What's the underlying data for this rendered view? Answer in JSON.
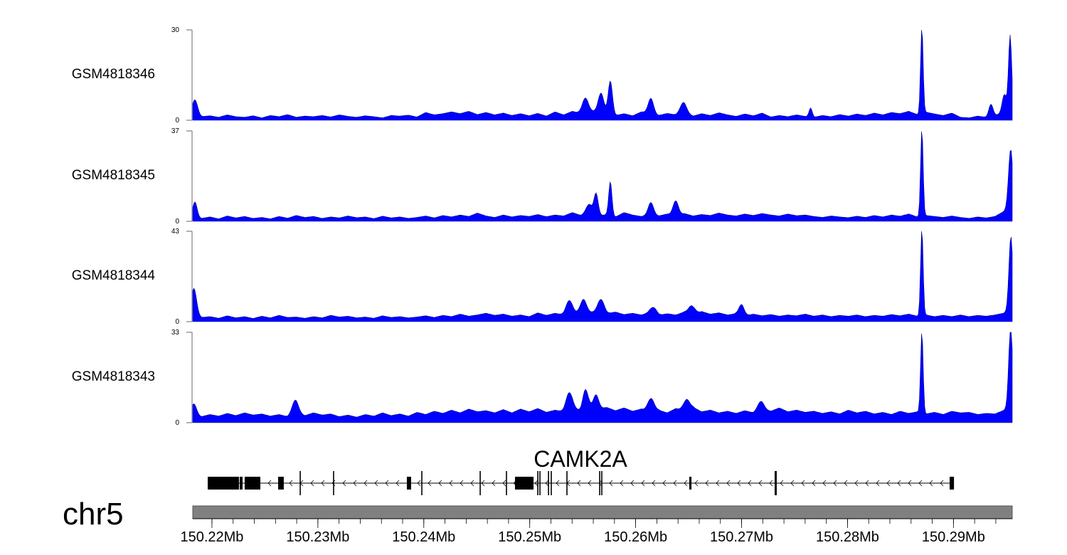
{
  "chart_data": {
    "type": "area",
    "chromosome": "chr5",
    "x_range_mb": [
      150.21819,
      150.29555
    ],
    "x_ticks_mb": [
      150.22,
      150.23,
      150.24,
      150.25,
      150.26,
      150.27,
      150.28,
      150.29
    ],
    "x_tick_labels": [
      "150.22Mb",
      "150.23Mb",
      "150.24Mb",
      "150.25Mb",
      "150.26Mb",
      "150.27Mb",
      "150.28Mb",
      "150.29Mb"
    ],
    "minor_tick_step_mb": 0.002,
    "fill_color": "#0000FF",
    "line_color": "#00008B",
    "tracks": [
      {
        "name": "GSM4818346",
        "ylim": [
          0,
          30
        ],
        "ytick_labels": [
          "30",
          "0"
        ],
        "baseline": [
          2,
          1.2,
          1.5,
          1,
          1.8,
          1.2,
          1,
          1.5,
          0.8,
          1.6,
          1.2,
          1.9,
          1,
          1.4,
          1.2,
          1.6,
          1.1,
          1.8,
          1.3,
          1,
          1.5,
          1.2,
          0.8,
          1.6,
          1.4,
          1.7,
          1.1,
          2.6,
          1.8,
          2.2,
          2.8,
          2.2,
          3,
          1.9,
          2.6,
          1.8,
          2.4,
          1.6,
          2.2,
          1.5,
          2.3,
          1.4,
          2.8,
          1.8,
          3,
          2.2,
          2.6,
          3.4,
          2.4,
          1.6,
          2.2,
          1.5,
          2.8,
          2.4,
          1.6,
          2.3,
          1.8,
          2.5,
          1.4,
          2.2,
          1.6,
          2.5,
          1.8,
          1.3,
          2.1,
          1.5,
          2.4,
          1.1,
          1.6,
          1.2,
          1.8,
          1.3,
          1,
          1.6,
          1.2,
          1.9,
          1.4,
          2.1,
          1.6,
          2.4,
          1.8,
          2.6,
          2.2,
          3,
          1.9,
          2.7,
          2.1,
          1.6,
          2.4,
          1,
          0.8,
          1.4,
          1,
          1.6,
          2.5,
          3.5
        ],
        "peaks": [
          [
            150.2184,
            5,
            0.25
          ],
          [
            150.25525,
            5,
            0.3
          ],
          [
            150.25674,
            6,
            0.25
          ],
          [
            150.25761,
            11,
            0.2
          ],
          [
            150.26144,
            5,
            0.25
          ],
          [
            150.2645,
            3.5,
            0.3
          ],
          [
            150.27652,
            3,
            0.15
          ],
          [
            150.28702,
            29,
            0.12
          ],
          [
            150.29354,
            4,
            0.2
          ],
          [
            150.29535,
            25,
            0.15
          ],
          [
            150.2948,
            6,
            0.2
          ]
        ]
      },
      {
        "name": "GSM4818345",
        "ylim": [
          0,
          37
        ],
        "ytick_labels": [
          "37",
          "0"
        ],
        "baseline": [
          2.2,
          1.2,
          1.8,
          1,
          2.2,
          1.4,
          2,
          1.2,
          1.6,
          1,
          2,
          1.3,
          2.4,
          1.6,
          2,
          1.2,
          1.8,
          1.4,
          2.2,
          1.5,
          1.8,
          1.1,
          2.1,
          1.4,
          1.8,
          1.2,
          1.6,
          2.2,
          1.4,
          2.4,
          1.8,
          2.6,
          2,
          3.4,
          2.2,
          1.6,
          2.6,
          1.8,
          2.4,
          2,
          2.8,
          1.9,
          2.6,
          2.2,
          3.6,
          2.4,
          3,
          2.1,
          2.8,
          1.8,
          3.6,
          2.6,
          2,
          2.8,
          2.2,
          3,
          2.4,
          3.2,
          2.2,
          2.8,
          2.4,
          3.4,
          2.6,
          2.2,
          3,
          2.4,
          3.2,
          2.6,
          2.2,
          3,
          2.3,
          2.6,
          2,
          1.6,
          2.2,
          1.8,
          1.5,
          2.1,
          1.6,
          2.4,
          1.8,
          2.6,
          2.1,
          3,
          1.8,
          2.4,
          2,
          1.6,
          2.2,
          1.6,
          1.2,
          1.8,
          1.4,
          2,
          4,
          6
        ],
        "peaks": [
          [
            150.2184,
            6,
            0.2
          ],
          [
            150.2556,
            4,
            0.3
          ],
          [
            150.25627,
            9,
            0.2
          ],
          [
            150.25761,
            14,
            0.15
          ],
          [
            150.26144,
            5,
            0.25
          ],
          [
            150.26378,
            6,
            0.25
          ],
          [
            150.28702,
            36,
            0.12
          ],
          [
            150.2954,
            24,
            0.2
          ]
        ]
      },
      {
        "name": "GSM4818344",
        "ylim": [
          0,
          43
        ],
        "ytick_labels": [
          "43",
          "0"
        ],
        "baseline": [
          3,
          2,
          2.4,
          1.6,
          2.8,
          1.8,
          2.4,
          1.5,
          2.6,
          1.8,
          3,
          2,
          2.2,
          1.6,
          2.4,
          1.8,
          3,
          2.2,
          2.6,
          1.8,
          2.2,
          1.6,
          2.8,
          2,
          2.4,
          1.8,
          2.2,
          2.8,
          2,
          3,
          2.4,
          3.6,
          2.6,
          3.2,
          4,
          3,
          3.6,
          2.6,
          3.2,
          2.4,
          4.2,
          3,
          4,
          3.2,
          4.6,
          3.4,
          4.2,
          5,
          3.8,
          4.6,
          3.4,
          4,
          3.2,
          4.4,
          3,
          3.8,
          3.2,
          4.6,
          3.4,
          4.8,
          3.6,
          4.2,
          3.2,
          3.8,
          2.8,
          3.6,
          2.8,
          3.4,
          2.6,
          3.2,
          2.8,
          3.6,
          2.6,
          3.2,
          2.4,
          3,
          2.6,
          3.2,
          2.4,
          3,
          2.6,
          3.4,
          2.8,
          3.6,
          2.6,
          3.2,
          2.4,
          3,
          2.4,
          3.2,
          2.4,
          3,
          2.6,
          3.2,
          4,
          6
        ],
        "peaks": [
          [
            150.2183,
            13,
            0.25
          ],
          [
            150.25371,
            6,
            0.3
          ],
          [
            150.25506,
            7,
            0.3
          ],
          [
            150.25674,
            6,
            0.3
          ],
          [
            150.2617,
            3,
            0.3
          ],
          [
            150.2653,
            4,
            0.3
          ],
          [
            150.27,
            5,
            0.25
          ],
          [
            150.28702,
            42,
            0.12
          ],
          [
            150.29542,
            35,
            0.18
          ]
        ]
      },
      {
        "name": "GSM4818343",
        "ylim": [
          0,
          33
        ],
        "ytick_labels": [
          "33",
          "0"
        ],
        "baseline": [
          3,
          2.2,
          3,
          2.4,
          3.4,
          2.6,
          3.6,
          2.8,
          3.2,
          2.4,
          3,
          2.2,
          3.4,
          2.6,
          3.6,
          2.8,
          3.2,
          2.2,
          2.8,
          2,
          3,
          2.4,
          3.6,
          2.6,
          3.2,
          2.4,
          3.8,
          3,
          4.2,
          3.4,
          4.6,
          3.6,
          5,
          4,
          4.4,
          3.6,
          4.8,
          3.6,
          5,
          4,
          5.2,
          3.8,
          4.6,
          4,
          5.6,
          4.2,
          6,
          5,
          5.6,
          4.4,
          5.4,
          4.2,
          5,
          3.8,
          4.6,
          3.6,
          5.2,
          4.2,
          5.6,
          4,
          4.6,
          3.6,
          4.2,
          3.4,
          4.4,
          3.6,
          5,
          4.2,
          5.4,
          4,
          4.6,
          3.8,
          4.2,
          3.4,
          4,
          3.2,
          4.6,
          3.6,
          4.2,
          3.2,
          3.8,
          3,
          4.2,
          3.4,
          4,
          3.2,
          3.8,
          3,
          4.2,
          3.6,
          3.8,
          3,
          3.4,
          3.2,
          4.5,
          6
        ],
        "peaks": [
          [
            150.2183,
            4,
            0.25
          ],
          [
            150.22786,
            5,
            0.3
          ],
          [
            150.25371,
            6,
            0.3
          ],
          [
            150.25525,
            7,
            0.25
          ],
          [
            150.25627,
            5,
            0.25
          ],
          [
            150.26144,
            5,
            0.3
          ],
          [
            150.26479,
            4,
            0.3
          ],
          [
            150.2718,
            3,
            0.3
          ],
          [
            150.28702,
            30,
            0.12
          ],
          [
            150.2954,
            30,
            0.18
          ]
        ]
      }
    ],
    "gene": {
      "name": "CAMK2A",
      "strand": "-",
      "span_mb": [
        150.2196,
        150.29005
      ],
      "exons_mb": [
        [
          150.2196,
          150.22255
        ],
        [
          150.22262,
          150.22289
        ],
        [
          150.22309,
          150.22457
        ],
        [
          150.22625,
          150.22678
        ],
        [
          150.22828,
          150.22838
        ],
        [
          150.23143,
          150.23153
        ],
        [
          150.2384,
          150.2388
        ],
        [
          150.23976,
          150.23986
        ],
        [
          150.24527,
          150.24537
        ],
        [
          150.24775,
          150.24785
        ],
        [
          150.24861,
          150.25036
        ],
        [
          150.25071,
          150.25081
        ],
        [
          150.25091,
          150.25101
        ],
        [
          150.25172,
          150.25182
        ],
        [
          150.25198,
          150.25208
        ],
        [
          150.25346,
          150.25356
        ],
        [
          150.25655,
          150.25665
        ],
        [
          150.25675,
          150.25685
        ],
        [
          150.26506,
          150.26527
        ],
        [
          150.27312,
          150.27332
        ],
        [
          150.28964,
          150.29005
        ]
      ]
    }
  }
}
